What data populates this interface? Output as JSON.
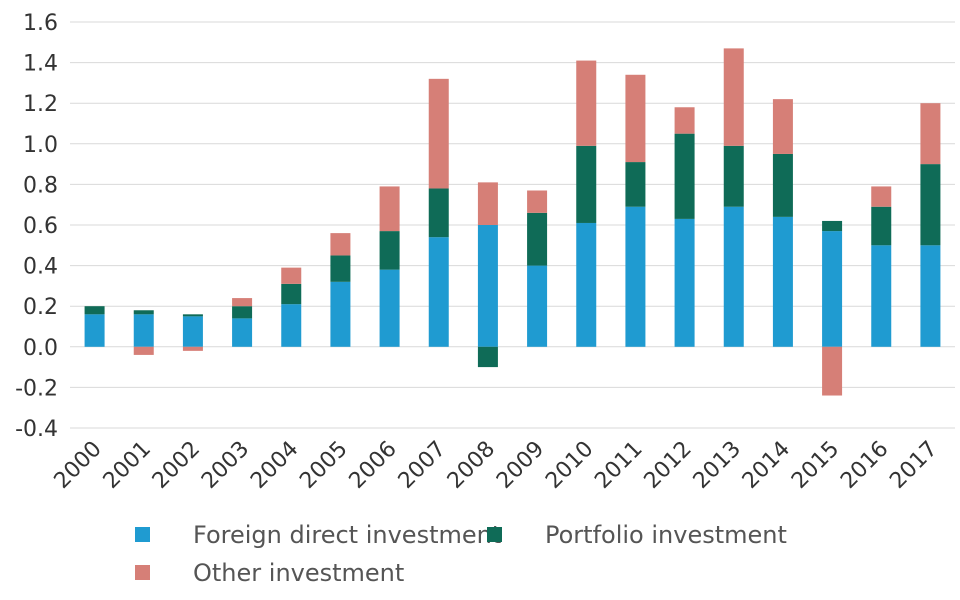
{
  "chart_data": {
    "type": "bar",
    "stacked": true,
    "title": "",
    "xlabel": "",
    "ylabel": "",
    "ylim": [
      -0.4,
      1.6
    ],
    "yticks": [
      "-0.4",
      "-0.2",
      "0.0",
      "0.2",
      "0.4",
      "0.6",
      "0.8",
      "1.0",
      "1.2",
      "1.4",
      "1.6"
    ],
    "grid": "horizontal",
    "legend_position": "bottom",
    "categories": [
      "2000",
      "2001",
      "2002",
      "2003",
      "2004",
      "2005",
      "2006",
      "2007",
      "2008",
      "2009",
      "2010",
      "2011",
      "2012",
      "2013",
      "2014",
      "2015",
      "2016",
      "2017"
    ],
    "series": [
      {
        "name": "Foreign direct investment",
        "color": "#1f9bd1",
        "values": [
          0.16,
          0.16,
          0.15,
          0.14,
          0.21,
          0.32,
          0.38,
          0.54,
          0.6,
          0.4,
          0.61,
          0.69,
          0.63,
          0.69,
          0.64,
          0.57,
          0.5,
          0.5
        ]
      },
      {
        "name": "Portfolio investment",
        "color": "#0f6b57",
        "values": [
          0.04,
          0.02,
          0.01,
          0.06,
          0.1,
          0.13,
          0.19,
          0.24,
          -0.1,
          0.26,
          0.38,
          0.22,
          0.42,
          0.3,
          0.31,
          0.05,
          0.19,
          0.4
        ]
      },
      {
        "name": "Other investment",
        "color": "#d67f77",
        "values": [
          0.0,
          -0.04,
          -0.02,
          0.04,
          0.08,
          0.11,
          0.22,
          0.54,
          0.21,
          0.11,
          0.42,
          0.43,
          0.13,
          0.48,
          0.27,
          -0.24,
          0.1,
          0.3
        ]
      }
    ]
  }
}
